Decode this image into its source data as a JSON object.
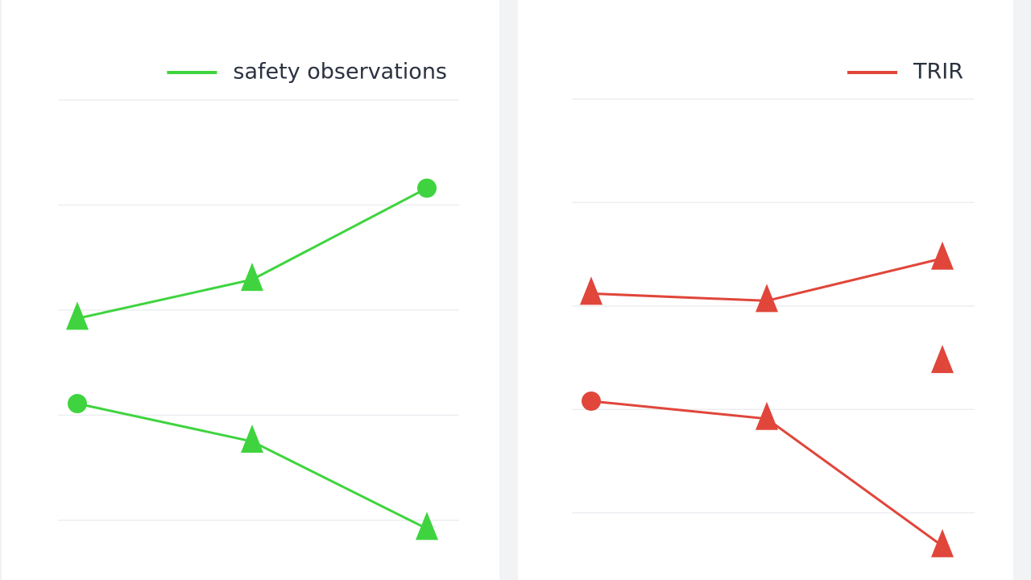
{
  "chart_data": [
    {
      "type": "line",
      "categories": [
        null,
        null,
        null
      ],
      "series": [
        {
          "name": "safety observations",
          "color": "#3fd43f",
          "values": [
            1.92,
            2.29,
            3.16
          ],
          "markers": [
            "triangle",
            "triangle",
            "circle"
          ]
        },
        {
          "color": "#3fd43f",
          "values": [
            1.11,
            0.75,
            -0.08
          ],
          "markers": [
            "circle",
            "triangle",
            "triangle"
          ]
        }
      ],
      "ylim": [
        -0.3,
        4
      ],
      "yticks": [
        0,
        1,
        2,
        3,
        4
      ],
      "grid": true
    },
    {
      "type": "line",
      "categories": [
        null,
        null,
        null
      ],
      "series": [
        {
          "name": "TRIR",
          "color": "#e0463a",
          "values": [
            2.12,
            2.05,
            2.46
          ],
          "markers": [
            "triangle",
            "triangle",
            "triangle"
          ]
        },
        {
          "color": "#e0463a",
          "values": [
            1.08,
            0.91,
            -0.32
          ],
          "markers": [
            "circle",
            "triangle",
            "triangle"
          ]
        },
        {
          "color": "#e0463a",
          "values": [
            null,
            null,
            1.46
          ],
          "markers": [
            null,
            null,
            "triangle"
          ]
        }
      ],
      "ylim": [
        -0.4,
        4
      ],
      "yticks": [
        0,
        1,
        2,
        3,
        4
      ],
      "grid": true
    }
  ]
}
